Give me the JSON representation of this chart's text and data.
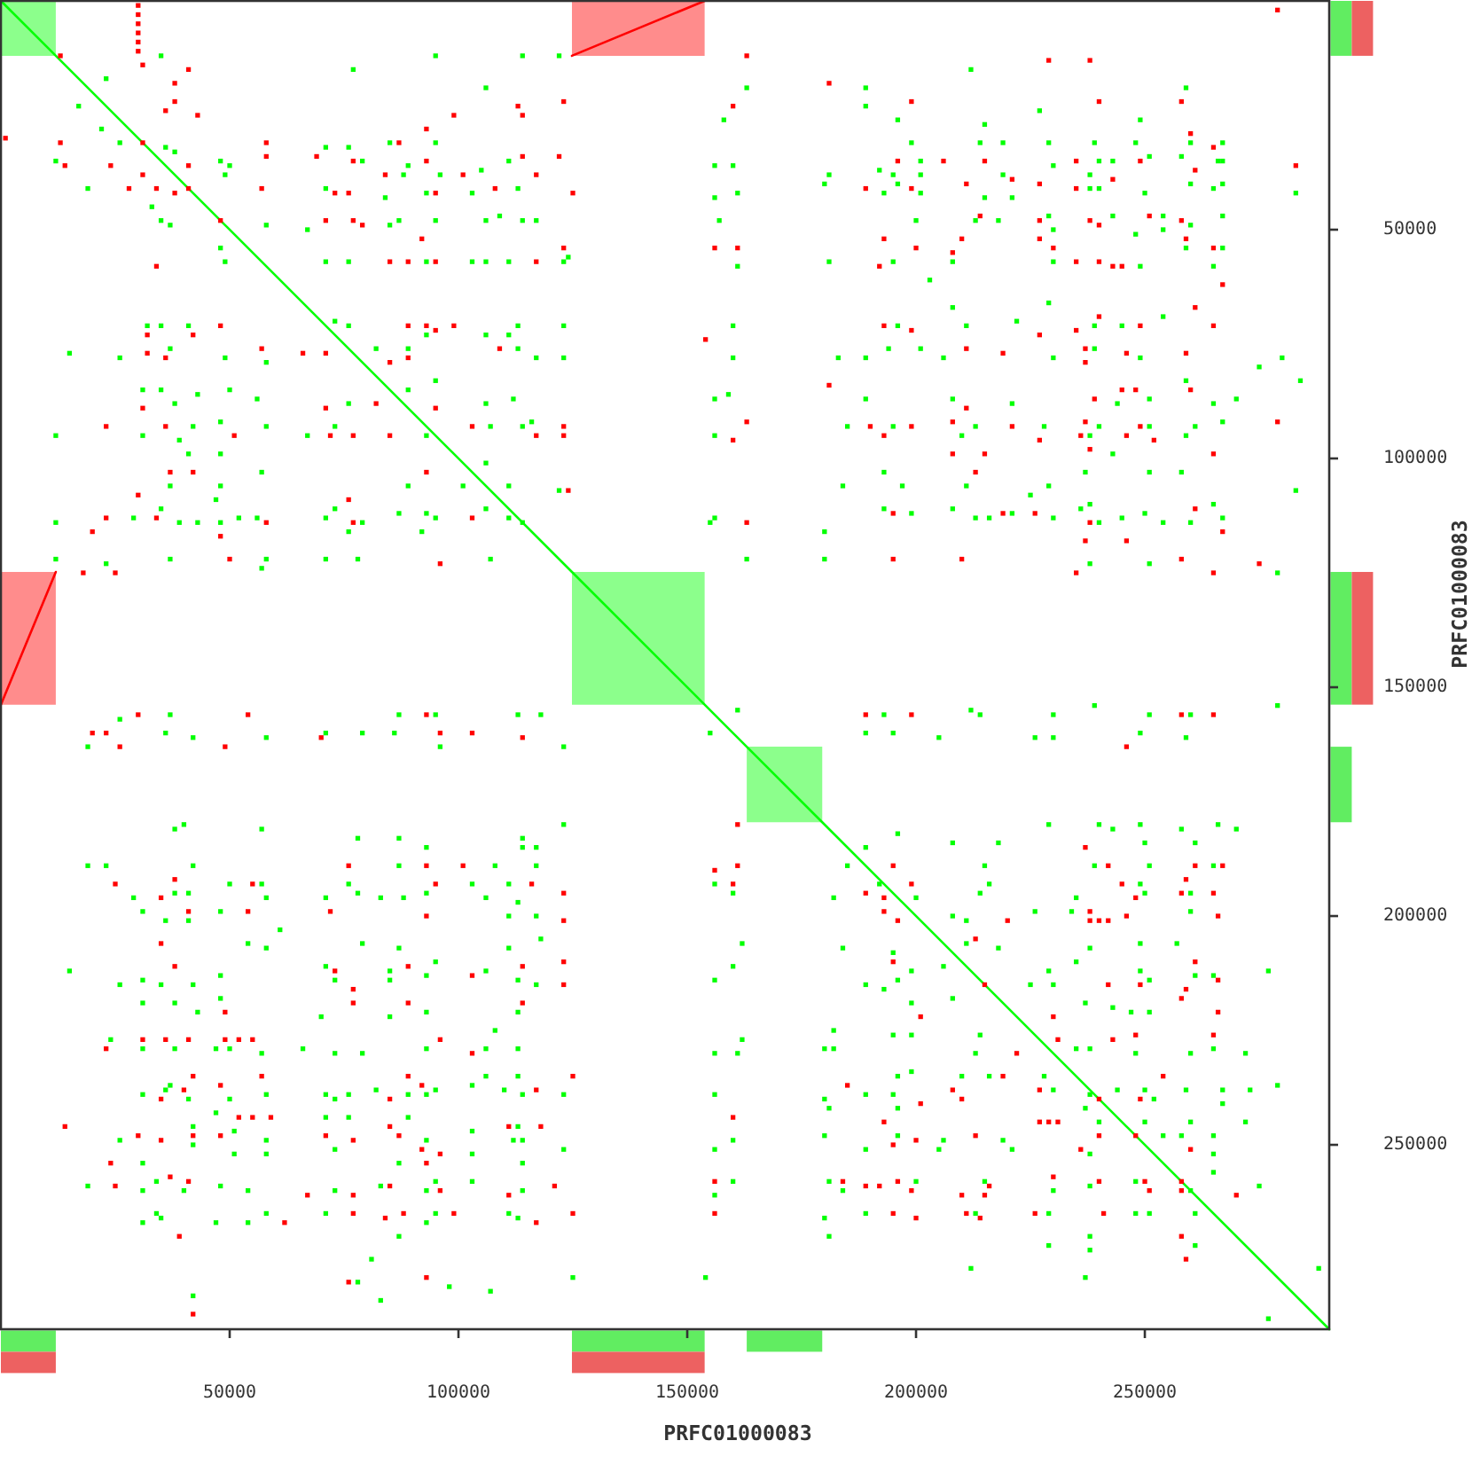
{
  "chart_data": {
    "type": "scatter",
    "xlabel": "PRFC01000083",
    "ylabel": "PRFC01000083",
    "xlim": [
      0,
      290300
    ],
    "ylim": [
      290300,
      0
    ],
    "xticks": [
      50000,
      100000,
      150000,
      200000,
      250000
    ],
    "yticks": [
      50000,
      100000,
      150000,
      200000,
      250000
    ],
    "series": [
      {
        "type": "line",
        "color": "#00ff00",
        "x": [
          0,
          12000,
          68000,
          124800,
          153800,
          158000,
          163000,
          179500,
          290300
        ],
        "values": [
          0,
          12000,
          68000,
          124800,
          153800,
          158000,
          163000,
          179500,
          290300
        ],
        "lower": [
          0,
          0,
          null,
          124800,
          124800,
          null,
          163000,
          163000,
          null
        ],
        "upper": [
          12000,
          12000,
          null,
          153800,
          153800,
          null,
          179500,
          179500,
          null
        ]
      },
      {
        "type": "line",
        "color": "#ff0000",
        "x": [
          124800,
          153800
        ],
        "values": [
          12000,
          0
        ],
        "lower": [
          0,
          0
        ],
        "upper": [
          12000,
          12000
        ]
      },
      {
        "type": "line",
        "color": "#ff0000",
        "x": [
          0,
          12000
        ],
        "values": [
          153800,
          124800
        ],
        "lower": [
          124800,
          124800
        ],
        "upper": [
          153800,
          153800
        ]
      },
      {
        "color": "#00ff00",
        "marker": "square",
        "x": [
          35000,
          23000,
          17000,
          22000,
          26000,
          36000,
          38000,
          12000,
          48000,
          50000,
          49000,
          19000,
          33000,
          35000,
          37000,
          58000,
          48000,
          49000,
          77000,
          95000,
          114000,
          122000,
          106000,
          71000,
          76000,
          85000,
          95000,
          79000,
          89000,
          111000,
          105000,
          88000,
          96000,
          71000,
          93000,
          84000,
          113000,
          103000,
          87000,
          95000,
          106000,
          109000,
          114000,
          117000,
          67000,
          85000,
          71000,
          76000,
          93000,
          103000,
          106000,
          111000,
          124000,
          123000,
          156000,
          160000,
          156000,
          32000,
          35000,
          41000,
          15000,
          26000,
          37000,
          49000,
          58000,
          76000,
          73000,
          93000,
          89000,
          82000,
          106000,
          111000,
          113000,
          113000,
          117000,
          123000,
          123000,
          160000,
          31000,
          35000,
          38000,
          43000,
          50000,
          56000,
          12000,
          31000,
          39000,
          42000,
          48000,
          58000,
          67000,
          73000,
          76000,
          89000,
          95000,
          106000,
          112000,
          114000,
          116000,
          93000,
          107000,
          156000,
          159000,
          156000,
          41000,
          48000,
          57000,
          48000,
          37000,
          47000,
          35000,
          39000,
          43000,
          48000,
          52000,
          56000,
          12000,
          29000,
          71000,
          73000,
          76000,
          79000,
          87000,
          89000,
          93000,
          95000,
          92000,
          101000,
          106000,
          106000,
          111000,
          111000,
          114000,
          122000,
          156000,
          155000,
          12000,
          23000,
          37000,
          57000,
          58000,
          71000,
          78000,
          107000,
          163000,
          163000,
          189000,
          189000,
          212000,
          227000,
          259000,
          158000,
          196000,
          215000,
          249000,
          199000,
          214000,
          219000,
          229000,
          239000,
          248000,
          260000,
          267000,
          192000,
          201000,
          219000,
          240000,
          243000,
          251000,
          258000,
          266000,
          267000,
          181000,
          195000,
          201000,
          230000,
          238000,
          161000,
          180000,
          193000,
          196000,
          201000,
          215000,
          221000,
          238000,
          240000,
          250000,
          260000,
          265000,
          267000,
          283000,
          157000,
          200000,
          213000,
          218000,
          229000,
          230000,
          243000,
          254000,
          254000,
          260000,
          267000,
          181000,
          195000,
          208000,
          230000,
          249000,
          259000,
          265000,
          267000,
          161000,
          248000,
          203000,
          229000,
          208000,
          254000,
          222000,
          196000,
          211000,
          239000,
          245000,
          275000,
          284000,
          280000,
          183000,
          189000,
          206000,
          230000,
          249000,
          160000,
          194000,
          201000,
          239000,
          259000,
          189000,
          208000,
          221000,
          244000,
          251000,
          265000,
          270000,
          185000,
          195000,
          213000,
          228000,
          240000,
          251000,
          261000,
          267000,
          210000,
          238000,
          259000,
          243000,
          193000,
          237000,
          251000,
          258000,
          184000,
          197000,
          211000,
          229000,
          225000,
          283000,
          180000,
          193000,
          199000,
          208000,
          213000,
          216000,
          221000,
          230000,
          236000,
          238000,
          240000,
          245000,
          250000,
          254000,
          260000,
          265000,
          267000,
          180000,
          238000,
          251000,
          279000,
          161000,
          193000,
          212000,
          214000,
          230000,
          239000,
          251000,
          260000,
          189000,
          205000,
          230000,
          249000,
          279000,
          26000,
          37000,
          42000,
          19000,
          36000,
          58000,
          71000,
          79000,
          86000,
          87000,
          96000,
          95000,
          113000,
          118000,
          123000,
          155000,
          38000,
          40000,
          57000,
          78000,
          87000,
          93000,
          114000,
          117000,
          114000,
          123000,
          19000,
          23000,
          42000,
          50000,
          57000,
          58000,
          29000,
          38000,
          41000,
          31000,
          36000,
          41000,
          48000,
          71000,
          76000,
          78000,
          83000,
          88000,
          87000,
          93000,
          103000,
          106000,
          108000,
          111000,
          113000,
          117000,
          111000,
          117000,
          156000,
          160000,
          15000,
          26000,
          31000,
          35000,
          42000,
          31000,
          38000,
          43000,
          48000,
          48000,
          54000,
          58000,
          61000,
          71000,
          73000,
          79000,
          85000,
          85000,
          87000,
          93000,
          95000,
          106000,
          111000,
          113000,
          117000,
          118000,
          70000,
          85000,
          93000,
          108000,
          113000,
          156000,
          160000,
          162000,
          24000,
          31000,
          38000,
          47000,
          50000,
          57000,
          66000,
          73000,
          79000,
          93000,
          106000,
          113000,
          31000,
          36000,
          37000,
          41000,
          50000,
          58000,
          71000,
          73000,
          76000,
          82000,
          89000,
          93000,
          95000,
          103000,
          106000,
          110000,
          114000,
          113000,
          123000,
          156000,
          161000,
          162000,
          156000,
          47000,
          42000,
          51000,
          58000,
          71000,
          76000,
          89000,
          93000,
          103000,
          113000,
          114000,
          114000,
          26000,
          31000,
          42000,
          51000,
          58000,
          73000,
          87000,
          103000,
          112000,
          123000,
          156000,
          160000,
          19000,
          31000,
          34000,
          40000,
          48000,
          54000,
          73000,
          83000,
          93000,
          95000,
          103000,
          114000,
          156000,
          160000,
          31000,
          34000,
          35000,
          47000,
          54000,
          58000,
          71000,
          87000,
          93000,
          95000,
          111000,
          113000,
          81000,
          78000,
          83000,
          98000,
          107000,
          42000,
          125000,
          154000,
          195000,
          226000,
          259000,
          229000,
          240000,
          249000,
          266000,
          270000,
          243000,
          258000,
          196000,
          208000,
          218000,
          250000,
          261000,
          189000,
          185000,
          215000,
          239000,
          251000,
          265000,
          182000,
          192000,
          214000,
          216000,
          235000,
          249000,
          250000,
          260000,
          200000,
          234000,
          226000,
          211000,
          208000,
          260000,
          211000,
          249000,
          257000,
          195000,
          218000,
          238000,
          184000,
          206000,
          199000,
          225000,
          229000,
          235000,
          249000,
          261000,
          265000,
          277000,
          189000,
          193000,
          196000,
          230000,
          251000,
          199000,
          208000,
          237000,
          243000,
          247000,
          251000,
          182000,
          195000,
          199000,
          214000,
          180000,
          182000,
          213000,
          235000,
          238000,
          248000,
          260000,
          265000,
          272000,
          196000,
          199000,
          210000,
          216000,
          228000,
          230000,
          238000,
          244000,
          250000,
          252000,
          259000,
          267000,
          273000,
          279000,
          180000,
          195000,
          189000,
          267000,
          181000,
          196000,
          237000,
          240000,
          250000,
          260000,
          272000,
          180000,
          196000,
          206000,
          219000,
          221000,
          254000,
          258000,
          265000,
          238000,
          265000,
          189000,
          205000,
          181000,
          200000,
          215000,
          230000,
          238000,
          248000,
          260000,
          265000,
          275000,
          184000,
          180000,
          189000,
          213000,
          229000,
          248000,
          251000,
          261000,
          181000,
          238000,
          261000,
          229000,
          238000,
          212000,
          237000,
          288000,
          277000
        ],
        "values": [
          12000,
          17000,
          23000,
          28000,
          31000,
          32000,
          33000,
          35000,
          35000,
          36000,
          38000,
          41000,
          45000,
          48000,
          49000,
          49000,
          54000,
          57000,
          15000,
          12000,
          12000,
          12000,
          19000,
          32000,
          32000,
          31000,
          31000,
          35000,
          36000,
          35000,
          37000,
          38000,
          38000,
          41000,
          42000,
          43000,
          41000,
          42000,
          48000,
          48000,
          48000,
          47000,
          48000,
          48000,
          50000,
          49000,
          57000,
          57000,
          57000,
          57000,
          57000,
          57000,
          56000,
          57000,
          36000,
          36000,
          43000,
          71000,
          71000,
          71000,
          77000,
          78000,
          76000,
          78000,
          79000,
          71000,
          70000,
          73000,
          76000,
          76000,
          73000,
          73000,
          71000,
          76000,
          78000,
          71000,
          78000,
          71000,
          85000,
          85000,
          88000,
          86000,
          85000,
          87000,
          95000,
          95000,
          96000,
          93000,
          92000,
          93000,
          95000,
          93000,
          88000,
          85000,
          83000,
          88000,
          87000,
          93000,
          92000,
          95000,
          93000,
          87000,
          86000,
          95000,
          99000,
          99000,
          103000,
          106000,
          106000,
          109000,
          111000,
          114000,
          114000,
          114000,
          113000,
          113000,
          114000,
          113000,
          113000,
          111000,
          116000,
          114000,
          112000,
          106000,
          112000,
          113000,
          116000,
          106000,
          101000,
          111000,
          106000,
          113000,
          114000,
          107000,
          113000,
          114000,
          122000,
          123000,
          122000,
          124000,
          122000,
          122000,
          122000,
          122000,
          122000,
          19000,
          19000,
          23000,
          15000,
          24000,
          19000,
          26000,
          26000,
          27000,
          26000,
          31000,
          31000,
          31000,
          31000,
          31000,
          31000,
          31000,
          31000,
          37000,
          35000,
          38000,
          35000,
          35000,
          34000,
          34000,
          35000,
          35000,
          38000,
          38000,
          38000,
          36000,
          38000,
          42000,
          40000,
          42000,
          40000,
          42000,
          43000,
          43000,
          41000,
          41000,
          42000,
          40000,
          41000,
          40000,
          42000,
          48000,
          48000,
          48000,
          48000,
          47000,
          50000,
          47000,
          47000,
          50000,
          49000,
          47000,
          57000,
          57000,
          57000,
          57000,
          58000,
          54000,
          58000,
          54000,
          58000,
          51000,
          61000,
          66000,
          67000,
          69000,
          70000,
          71000,
          71000,
          71000,
          71000,
          80000,
          83000,
          78000,
          78000,
          78000,
          78000,
          78000,
          78000,
          78000,
          76000,
          76000,
          76000,
          83000,
          87000,
          87000,
          88000,
          88000,
          87000,
          88000,
          87000,
          93000,
          93000,
          93000,
          93000,
          93000,
          93000,
          93000,
          92000,
          95000,
          95000,
          95000,
          99000,
          103000,
          103000,
          103000,
          103000,
          106000,
          106000,
          106000,
          106000,
          108000,
          107000,
          116000,
          111000,
          112000,
          111000,
          113000,
          113000,
          112000,
          113000,
          111000,
          110000,
          114000,
          113000,
          112000,
          114000,
          114000,
          110000,
          113000,
          122000,
          123000,
          123000,
          125000,
          155000,
          156000,
          155000,
          156000,
          156000,
          154000,
          156000,
          156000,
          160000,
          161000,
          161000,
          160000,
          154000,
          157000,
          156000,
          161000,
          163000,
          160000,
          161000,
          160000,
          160000,
          160000,
          156000,
          163000,
          156000,
          156000,
          156000,
          163000,
          160000,
          181000,
          180000,
          181000,
          183000,
          183000,
          185000,
          183000,
          185000,
          185000,
          180000,
          189000,
          189000,
          189000,
          193000,
          193000,
          196000,
          196000,
          195000,
          195000,
          199000,
          201000,
          201000,
          199000,
          196000,
          193000,
          195000,
          196000,
          196000,
          189000,
          195000,
          193000,
          196000,
          189000,
          193000,
          197000,
          189000,
          200000,
          200000,
          193000,
          195000,
          212000,
          215000,
          214000,
          215000,
          215000,
          219000,
          219000,
          221000,
          218000,
          213000,
          206000,
          207000,
          203000,
          211000,
          214000,
          206000,
          212000,
          214000,
          207000,
          213000,
          210000,
          212000,
          207000,
          214000,
          215000,
          205000,
          222000,
          222000,
          221000,
          225000,
          221000,
          214000,
          211000,
          206000,
          227000,
          229000,
          229000,
          229000,
          229000,
          230000,
          229000,
          230000,
          230000,
          229000,
          229000,
          229000,
          239000,
          238000,
          237000,
          240000,
          240000,
          239000,
          239000,
          240000,
          239000,
          238000,
          239000,
          239000,
          238000,
          237000,
          235000,
          238000,
          239000,
          235000,
          239000,
          239000,
          230000,
          227000,
          230000,
          243000,
          246000,
          247000,
          249000,
          244000,
          244000,
          244000,
          249000,
          247000,
          246000,
          249000,
          254000,
          249000,
          254000,
          250000,
          252000,
          252000,
          251000,
          254000,
          252000,
          249000,
          251000,
          251000,
          249000,
          259000,
          260000,
          258000,
          260000,
          259000,
          260000,
          260000,
          259000,
          260000,
          258000,
          258000,
          260000,
          261000,
          258000,
          267000,
          265000,
          266000,
          267000,
          267000,
          265000,
          265000,
          270000,
          267000,
          265000,
          265000,
          266000,
          275000,
          280000,
          284000,
          281000,
          282000,
          283000,
          279000,
          279000,
          160000,
          161000,
          161000,
          180000,
          180000,
          180000,
          180000,
          181000,
          181000,
          181000,
          182000,
          184000,
          184000,
          184000,
          184000,
          185000,
          189000,
          189000,
          189000,
          189000,
          189000,
          196000,
          193000,
          195000,
          193000,
          196000,
          193000,
          195000,
          195000,
          196000,
          199000,
          199000,
          201000,
          200000,
          199000,
          206000,
          206000,
          206000,
          208000,
          207000,
          207000,
          207000,
          211000,
          212000,
          215000,
          212000,
          210000,
          212000,
          213000,
          213000,
          212000,
          215000,
          216000,
          214000,
          215000,
          214000,
          219000,
          218000,
          219000,
          220000,
          221000,
          221000,
          225000,
          226000,
          226000,
          226000,
          229000,
          229000,
          230000,
          229000,
          229000,
          230000,
          230000,
          229000,
          230000,
          235000,
          234000,
          235000,
          235000,
          235000,
          238000,
          239000,
          238000,
          238000,
          240000,
          238000,
          238000,
          238000,
          237000,
          240000,
          239000,
          239000,
          241000,
          242000,
          242000,
          242000,
          245000,
          245000,
          245000,
          245000,
          248000,
          248000,
          249000,
          249000,
          251000,
          248000,
          248000,
          248000,
          252000,
          252000,
          251000,
          251000,
          258000,
          258000,
          258000,
          260000,
          259000,
          258000,
          260000,
          256000,
          259000,
          260000,
          266000,
          265000,
          265000,
          265000,
          265000,
          265000,
          265000,
          270000,
          270000,
          272000,
          272000,
          273000,
          277000,
          279000,
          277000,
          288000
        ]
      },
      {
        "color": "#ff0000",
        "marker": "square",
        "x": [
          30000,
          30000,
          30000,
          30000,
          30000,
          30000,
          1000,
          13000,
          31000,
          38000,
          41000,
          38000,
          36000,
          43000,
          31000,
          13000,
          14000,
          24000,
          31000,
          28000,
          34000,
          38000,
          41000,
          41000,
          48000,
          34000,
          58000,
          58000,
          57000,
          69000,
          77000,
          87000,
          93000,
          99000,
          113000,
          114000,
          114000,
          122000,
          123000,
          73000,
          76000,
          84000,
          93000,
          95000,
          101000,
          108000,
          117000,
          125000,
          71000,
          77000,
          79000,
          92000,
          85000,
          89000,
          95000,
          117000,
          123000,
          161000,
          160000,
          32000,
          32000,
          36000,
          42000,
          48000,
          57000,
          66000,
          71000,
          85000,
          89000,
          89000,
          93000,
          95000,
          99000,
          109000,
          154000,
          31000,
          23000,
          36000,
          51000,
          71000,
          82000,
          95000,
          77000,
          72000,
          85000,
          103000,
          117000,
          123000,
          123000,
          37000,
          42000,
          30000,
          23000,
          20000,
          34000,
          48000,
          58000,
          76000,
          77000,
          93000,
          103000,
          124000,
          50000,
          96000,
          25000,
          18000,
          279000,
          163000,
          229000,
          238000,
          181000,
          199000,
          240000,
          258000,
          260000,
          265000,
          196000,
          206000,
          215000,
          235000,
          249000,
          261000,
          283000,
          189000,
          199000,
          221000,
          227000,
          235000,
          243000,
          211000,
          156000,
          193000,
          200000,
          208000,
          227000,
          230000,
          235000,
          240000,
          259000,
          265000,
          192000,
          243000,
          245000,
          267000,
          214000,
          227000,
          238000,
          240000,
          251000,
          258000,
          210000,
          261000,
          193000,
          199000,
          227000,
          235000,
          240000,
          249000,
          265000,
          211000,
          219000,
          237000,
          246000,
          259000,
          237000,
          181000,
          245000,
          248000,
          260000,
          211000,
          239000,
          163000,
          190000,
          199000,
          208000,
          221000,
          237000,
          249000,
          279000,
          160000,
          193000,
          227000,
          236000,
          246000,
          252000,
          265000,
          208000,
          215000,
          238000,
          213000,
          163000,
          195000,
          219000,
          226000,
          238000,
          237000,
          246000,
          261000,
          267000,
          195000,
          210000,
          235000,
          258000,
          265000,
          275000,
          189000,
          199000,
          258000,
          265000,
          26000,
          20000,
          23000,
          30000,
          49000,
          70000,
          96000,
          103000,
          114000,
          93000,
          54000,
          25000,
          38000,
          55000,
          76000,
          93000,
          95000,
          101000,
          116000,
          35000,
          41000,
          54000,
          93000,
          123000,
          123000,
          72000,
          35000,
          38000,
          49000,
          73000,
          77000,
          77000,
          89000,
          89000,
          96000,
          103000,
          114000,
          114000,
          123000,
          123000,
          161000,
          160000,
          156000,
          161000,
          23000,
          31000,
          36000,
          41000,
          49000,
          52000,
          55000,
          103000,
          42000,
          57000,
          40000,
          35000,
          48000,
          85000,
          89000,
          92000,
          117000,
          125000,
          14000,
          30000,
          35000,
          42000,
          52000,
          55000,
          59000,
          48000,
          71000,
          77000,
          85000,
          87000,
          96000,
          92000,
          93000,
          111000,
          118000,
          160000,
          24000,
          25000,
          37000,
          41000,
          67000,
          77000,
          85000,
          96000,
          111000,
          121000,
          156000,
          39000,
          62000,
          77000,
          84000,
          88000,
          99000,
          117000,
          125000,
          156000,
          76000,
          93000,
          42000,
          246000,
          237000,
          195000,
          242000,
          261000,
          267000,
          259000,
          245000,
          258000,
          265000,
          189000,
          193000,
          248000,
          199000,
          238000,
          220000,
          238000,
          240000,
          242000,
          246000,
          266000,
          193000,
          196000,
          213000,
          195000,
          261000,
          249000,
          242000,
          266000,
          215000,
          259000,
          201000,
          230000,
          258000,
          266000,
          231000,
          243000,
          248000,
          265000,
          222000,
          185000,
          219000,
          208000,
          210000,
          227000,
          240000,
          249000,
          254000,
          201000,
          193000,
          195000,
          200000,
          213000,
          227000,
          229000,
          231000,
          240000,
          248000,
          260000,
          236000,
          189000,
          192000,
          196000,
          199000,
          210000,
          215000,
          216000,
          230000,
          240000,
          250000,
          251000,
          258000,
          258000,
          270000,
          184000,
          211000,
          214000,
          200000,
          195000,
          241000,
          226000,
          258000,
          259000
        ],
        "values": [
          1000,
          3000,
          5000,
          7000,
          9000,
          11000,
          30000,
          12000,
          14000,
          18000,
          15000,
          22000,
          24000,
          25000,
          31000,
          31000,
          36000,
          36000,
          38000,
          41000,
          41000,
          42000,
          41000,
          36000,
          48000,
          58000,
          31000,
          34000,
          41000,
          34000,
          35000,
          31000,
          28000,
          25000,
          23000,
          25000,
          34000,
          34000,
          22000,
          42000,
          42000,
          38000,
          35000,
          42000,
          38000,
          41000,
          38000,
          42000,
          48000,
          48000,
          49000,
          52000,
          57000,
          57000,
          57000,
          57000,
          54000,
          54000,
          23000,
          73000,
          77000,
          78000,
          73000,
          71000,
          76000,
          77000,
          77000,
          79000,
          78000,
          71000,
          71000,
          72000,
          71000,
          76000,
          74000,
          89000,
          93000,
          93000,
          95000,
          89000,
          88000,
          89000,
          95000,
          95000,
          95000,
          93000,
          95000,
          95000,
          93000,
          103000,
          103000,
          108000,
          113000,
          116000,
          113000,
          117000,
          114000,
          109000,
          114000,
          103000,
          113000,
          107000,
          122000,
          123000,
          125000,
          125000,
          2000,
          12000,
          13000,
          13000,
          18000,
          22000,
          22000,
          22000,
          29000,
          32000,
          35000,
          35000,
          35000,
          35000,
          35000,
          37000,
          36000,
          41000,
          41000,
          39000,
          40000,
          41000,
          39000,
          40000,
          54000,
          52000,
          54000,
          55000,
          52000,
          54000,
          57000,
          57000,
          52000,
          54000,
          58000,
          58000,
          58000,
          62000,
          47000,
          48000,
          48000,
          49000,
          47000,
          48000,
          52000,
          67000,
          71000,
          72000,
          73000,
          72000,
          69000,
          71000,
          71000,
          76000,
          77000,
          76000,
          77000,
          77000,
          79000,
          84000,
          85000,
          85000,
          85000,
          89000,
          87000,
          92000,
          93000,
          93000,
          92000,
          93000,
          92000,
          93000,
          92000,
          96000,
          95000,
          96000,
          95000,
          95000,
          96000,
          99000,
          99000,
          99000,
          98000,
          103000,
          114000,
          112000,
          112000,
          112000,
          114000,
          118000,
          118000,
          111000,
          116000,
          122000,
          122000,
          125000,
          122000,
          125000,
          123000,
          156000,
          156000,
          156000,
          156000,
          163000,
          160000,
          160000,
          156000,
          163000,
          161000,
          160000,
          160000,
          161000,
          156000,
          156000,
          193000,
          192000,
          193000,
          189000,
          189000,
          193000,
          189000,
          193000,
          196000,
          199000,
          199000,
          200000,
          195000,
          201000,
          199000,
          206000,
          211000,
          221000,
          212000,
          216000,
          219000,
          219000,
          211000,
          227000,
          213000,
          211000,
          219000,
          215000,
          210000,
          180000,
          193000,
          190000,
          189000,
          229000,
          227000,
          227000,
          227000,
          227000,
          227000,
          227000,
          230000,
          235000,
          235000,
          238000,
          240000,
          237000,
          240000,
          235000,
          237000,
          238000,
          235000,
          246000,
          248000,
          249000,
          248000,
          244000,
          244000,
          244000,
          248000,
          248000,
          249000,
          246000,
          248000,
          252000,
          251000,
          254000,
          246000,
          246000,
          244000,
          254000,
          259000,
          257000,
          258000,
          261000,
          261000,
          259000,
          260000,
          261000,
          259000,
          258000,
          270000,
          267000,
          265000,
          266000,
          265000,
          265000,
          267000,
          265000,
          265000,
          280000,
          279000,
          287000,
          163000,
          185000,
          189000,
          189000,
          189000,
          189000,
          192000,
          193000,
          195000,
          195000,
          195000,
          196000,
          196000,
          193000,
          199000,
          201000,
          201000,
          201000,
          201000,
          200000,
          200000,
          199000,
          201000,
          205000,
          210000,
          210000,
          215000,
          215000,
          214000,
          215000,
          216000,
          222000,
          222000,
          218000,
          221000,
          227000,
          227000,
          226000,
          226000,
          230000,
          237000,
          235000,
          238000,
          240000,
          238000,
          240000,
          240000,
          235000,
          241000,
          245000,
          250000,
          249000,
          248000,
          245000,
          245000,
          245000,
          248000,
          248000,
          251000,
          251000,
          259000,
          259000,
          258000,
          260000,
          261000,
          261000,
          259000,
          257000,
          258000,
          258000,
          260000,
          258000,
          260000,
          261000,
          258000,
          265000,
          266000,
          266000,
          265000,
          265000,
          265000,
          270000,
          275000
        ]
      }
    ]
  }
}
